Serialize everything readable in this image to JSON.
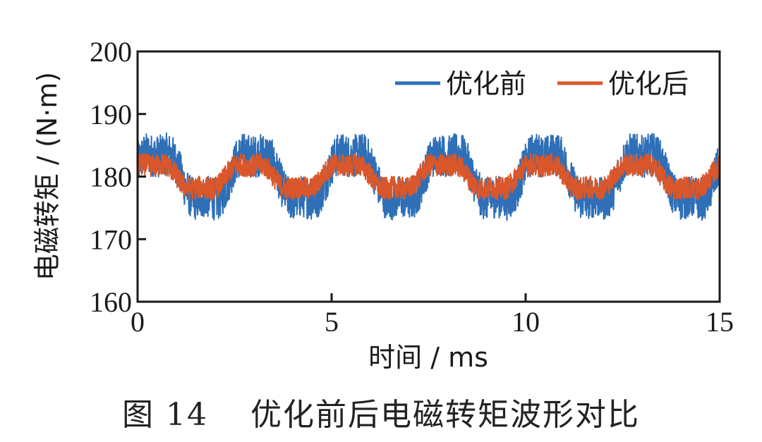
{
  "chart_data": {
    "type": "line",
    "xlabel": "时间 / ms",
    "ylabel": "电磁转矩 / (N·m)",
    "xlim": [
      0,
      15
    ],
    "ylim": [
      160,
      200
    ],
    "xticks": [
      "0",
      "5",
      "10",
      "15"
    ],
    "yticks": [
      "160",
      "170",
      "180",
      "190",
      "200"
    ],
    "grid": false,
    "legend_position": "top-right",
    "series": [
      {
        "name": "优化前",
        "color": "#2E6FB7",
        "mean": 180,
        "ripple_peak_to_peak": 15,
        "approx_max": 189,
        "approx_min": 173,
        "ripple_period_ms": 2.5
      },
      {
        "name": "优化后",
        "color": "#D9572A",
        "mean": 180,
        "ripple_peak_to_peak": 8,
        "approx_max": 184,
        "approx_min": 175,
        "ripple_period_ms": 2.5
      }
    ]
  },
  "caption": {
    "number": "图 14",
    "text": "优化前后电磁转矩波形对比"
  }
}
